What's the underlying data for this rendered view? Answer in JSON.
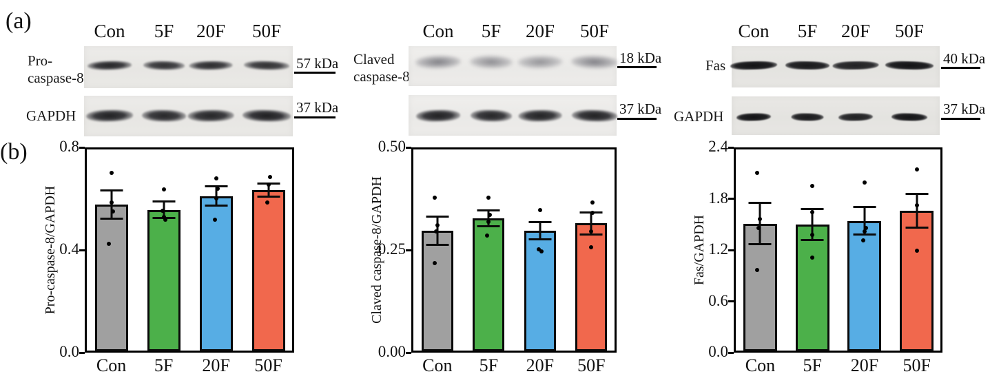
{
  "figure": {
    "panel_a_label": "(a)",
    "panel_b_label": "(b)"
  },
  "lane_labels": [
    "Con",
    "5F",
    "20F",
    "50F"
  ],
  "bar_colors": [
    "#a0a0a0",
    "#4cb04a",
    "#57ade4",
    "#f1684d"
  ],
  "blot_groups": [
    {
      "id": "pro-caspase-8",
      "protein_line1": "Pro-",
      "protein_line2": "caspase-8",
      "protein_kda": "57 kDa",
      "gapdh_label": "GAPDH",
      "gapdh_kda": "37 kDa",
      "protein_band_intensity": [
        0.93,
        0.88,
        0.9,
        0.88
      ],
      "gapdh_band_intensity": [
        0.95,
        0.92,
        0.93,
        0.96
      ]
    },
    {
      "id": "claved-caspase-8",
      "protein_line1": "Claved",
      "protein_line2": "caspase-8",
      "protein_kda": "18 kDa",
      "gapdh_label": "",
      "gapdh_kda": "37 kDa",
      "protein_band_intensity": [
        0.85,
        0.75,
        0.7,
        0.85
      ],
      "gapdh_band_intensity": [
        0.95,
        0.93,
        0.94,
        0.95
      ]
    },
    {
      "id": "fas",
      "protein_line1": "Fas",
      "protein_line2": "",
      "protein_kda": "40 kDa",
      "gapdh_label": "GAPDH",
      "gapdh_kda": "37 kDa",
      "protein_band_intensity": [
        0.97,
        0.94,
        0.9,
        0.97
      ],
      "gapdh_band_intensity": [
        0.97,
        0.93,
        0.9,
        0.96
      ]
    }
  ],
  "chart_data": [
    {
      "type": "bar",
      "title": "",
      "xlabel": "",
      "ylabel": "Pro-caspase-8/GAPDH",
      "categories": [
        "Con",
        "5F",
        "20F",
        "50F"
      ],
      "values": [
        0.578,
        0.557,
        0.61,
        0.634
      ],
      "errors": [
        0.055,
        0.032,
        0.037,
        0.026
      ],
      "scatter": [
        [
          0.7,
          0.585,
          0.55,
          0.425
        ],
        [
          0.635,
          0.552,
          0.53,
          0.518
        ],
        [
          0.68,
          0.64,
          0.602,
          0.518
        ],
        [
          0.685,
          0.655,
          0.585
        ]
      ],
      "scatter_dx": [
        [
          0,
          0,
          1,
          -2
        ],
        [
          0,
          -1,
          0,
          1
        ],
        [
          0,
          1,
          0,
          -1
        ],
        [
          1,
          0,
          -1
        ]
      ],
      "ylim": [
        0,
        0.8
      ],
      "yticks": [
        0.0,
        0.4,
        0.8
      ],
      "ytick_labels": [
        "0.0",
        "0.4",
        "0.8"
      ],
      "grid": false,
      "legend": false
    },
    {
      "type": "bar",
      "title": "",
      "xlabel": "",
      "ylabel": "Claved caspase-8/GAPDH",
      "categories": [
        "Con",
        "5F",
        "20F",
        "50F"
      ],
      "values": [
        0.297,
        0.327,
        0.297,
        0.315
      ],
      "errors": [
        0.034,
        0.019,
        0.021,
        0.027
      ],
      "scatter": [
        [
          0.378,
          0.31,
          0.296,
          0.218
        ],
        [
          0.378,
          0.335,
          0.318,
          0.285
        ],
        [
          0.347,
          0.252,
          0.247
        ],
        [
          0.365,
          0.34,
          0.295,
          0.257
        ]
      ],
      "scatter_dx": [
        [
          -2,
          0,
          -1,
          -2
        ],
        [
          0,
          1,
          0,
          -1
        ],
        [
          0,
          -1,
          1
        ],
        [
          1,
          1,
          0,
          0
        ]
      ],
      "ylim": [
        0,
        0.5
      ],
      "yticks": [
        0.0,
        0.25,
        0.5
      ],
      "ytick_labels": [
        "0.00",
        "0.25",
        "0.50"
      ],
      "grid": false,
      "legend": false
    },
    {
      "type": "bar",
      "title": "",
      "xlabel": "",
      "ylabel": "Fas/GAPDH",
      "categories": [
        "Con",
        "5F",
        "20F",
        "50F"
      ],
      "values": [
        1.51,
        1.5,
        1.54,
        1.66
      ],
      "errors": [
        0.24,
        0.18,
        0.16,
        0.2
      ],
      "scatter": [
        [
          2.1,
          1.56,
          1.46,
          0.97
        ],
        [
          1.95,
          1.64,
          1.38,
          1.11
        ],
        [
          1.99,
          1.46,
          1.42,
          1.31
        ],
        [
          2.14,
          1.72,
          1.19
        ]
      ],
      "scatter_dx": [
        [
          -2,
          0,
          -1,
          -2
        ],
        [
          0,
          0,
          0,
          0
        ],
        [
          0,
          1,
          0,
          -1
        ],
        [
          0,
          0,
          0
        ]
      ],
      "ylim": [
        0,
        2.4
      ],
      "yticks": [
        0.0,
        0.6,
        1.2,
        1.8,
        2.4
      ],
      "ytick_labels": [
        "0.0",
        "0.6",
        "1.2",
        "1.8",
        "2.4"
      ],
      "grid": false,
      "legend": false
    }
  ]
}
